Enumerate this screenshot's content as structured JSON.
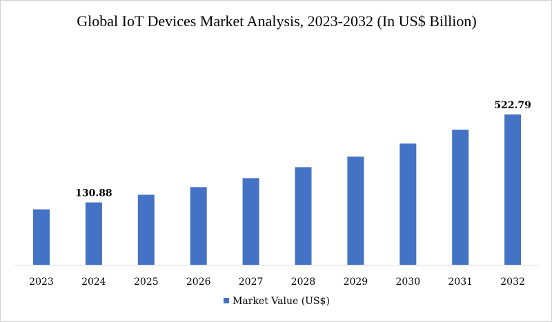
{
  "chart_data": {
    "type": "bar",
    "title": "Global IoT Devices Market Analysis, 2023-2032 (In US$ Billion)",
    "categories": [
      "2023",
      "2024",
      "2025",
      "2026",
      "2027",
      "2028",
      "2029",
      "2030",
      "2031",
      "2032"
    ],
    "series": [
      {
        "name": "Market Value (US$)",
        "color": "#4472C4",
        "values": [
          100,
          130.88,
          165,
          199,
          239,
          288,
          335,
          393,
          455,
          522.79
        ]
      }
    ],
    "data_labels": [
      {
        "category": "2024",
        "text": "130.88"
      },
      {
        "category": "2032",
        "text": "522.79"
      }
    ],
    "ylim": [
      -147,
      522.79
    ],
    "grid": false,
    "y_axis_visible": false,
    "legend_position": "bottom"
  }
}
